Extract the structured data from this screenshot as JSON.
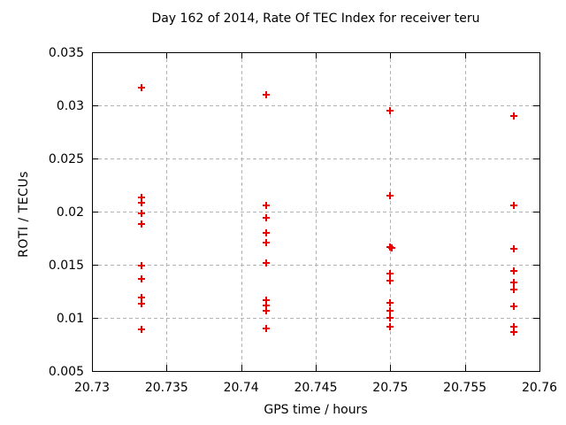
{
  "chart_data": {
    "type": "scatter",
    "title": "Day 162 of 2014, Rate Of TEC Index for receiver teru",
    "xlabel": "GPS time / hours",
    "ylabel": "ROTI / TECUs",
    "xlim": [
      20.73,
      20.76
    ],
    "ylim": [
      0.005,
      0.035
    ],
    "x_ticks": [
      20.73,
      20.735,
      20.74,
      20.745,
      20.75,
      20.755,
      20.76
    ],
    "x_tick_labels": [
      "20.73",
      "20.735",
      "20.74",
      "20.745",
      "20.75",
      "20.755",
      "20.76"
    ],
    "y_ticks": [
      0.005,
      0.01,
      0.015,
      0.02,
      0.025,
      0.03,
      0.035
    ],
    "y_tick_labels": [
      "0.005",
      "0.01",
      "0.015",
      "0.02",
      "0.025",
      "0.03",
      "0.035"
    ],
    "grid": true,
    "legend": "none",
    "marker": {
      "shape": "plus",
      "color": "#e60000"
    },
    "axis_color": "#000000",
    "grid_color": "#b3b3b3",
    "series": [
      {
        "name": "ROTI",
        "points": [
          [
            20.7333,
            0.0317
          ],
          [
            20.7333,
            0.0213
          ],
          [
            20.7333,
            0.0208
          ],
          [
            20.7333,
            0.0198
          ],
          [
            20.7333,
            0.0188
          ],
          [
            20.7333,
            0.0149
          ],
          [
            20.7333,
            0.0137
          ],
          [
            20.7333,
            0.0119
          ],
          [
            20.7333,
            0.0113
          ],
          [
            20.7333,
            0.0089
          ],
          [
            20.7417,
            0.031
          ],
          [
            20.7417,
            0.0206
          ],
          [
            20.7417,
            0.0194
          ],
          [
            20.7417,
            0.018
          ],
          [
            20.7417,
            0.0171
          ],
          [
            20.7417,
            0.0152
          ],
          [
            20.7417,
            0.0117
          ],
          [
            20.7417,
            0.0112
          ],
          [
            20.7417,
            0.0107
          ],
          [
            20.7417,
            0.009
          ],
          [
            20.75,
            0.0295
          ],
          [
            20.75,
            0.0215
          ],
          [
            20.75,
            0.0167
          ],
          [
            20.7501,
            0.0166
          ],
          [
            20.75,
            0.0142
          ],
          [
            20.75,
            0.0135
          ],
          [
            20.75,
            0.0114
          ],
          [
            20.75,
            0.0107
          ],
          [
            20.75,
            0.01
          ],
          [
            20.75,
            0.0092
          ],
          [
            20.7583,
            0.029
          ],
          [
            20.7583,
            0.0206
          ],
          [
            20.7583,
            0.0165
          ],
          [
            20.7583,
            0.0144
          ],
          [
            20.7583,
            0.0133
          ],
          [
            20.7583,
            0.0127
          ],
          [
            20.7583,
            0.0111
          ],
          [
            20.7583,
            0.0092
          ],
          [
            20.7583,
            0.0087
          ]
        ]
      }
    ]
  }
}
